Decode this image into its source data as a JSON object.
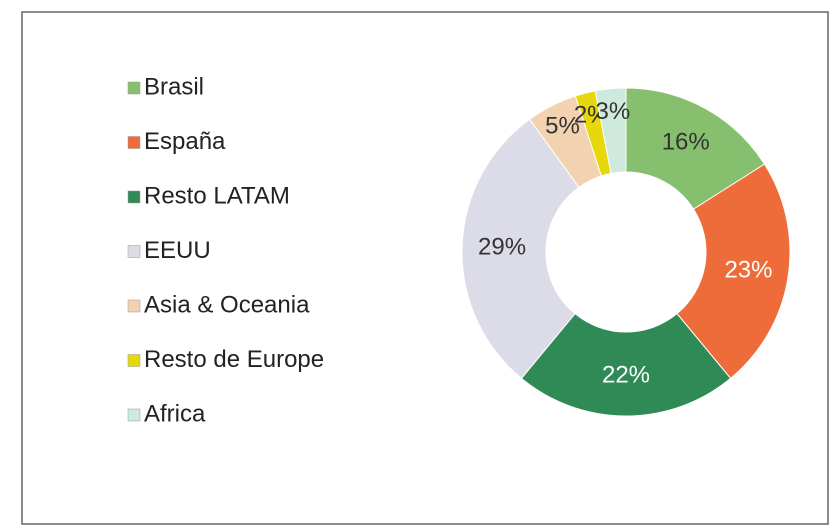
{
  "chart_data": {
    "type": "donut",
    "categories": [
      "Brasil",
      "España",
      "Resto LATAM",
      "EEUU",
      "Asia & Oceania",
      "Resto de Europe",
      "Africa"
    ],
    "values": [
      16,
      23,
      22,
      29,
      5,
      2,
      3
    ],
    "value_labels": [
      "16%",
      "23%",
      "22%",
      "29%",
      "5%",
      "2%",
      "3%"
    ],
    "colors": [
      "#86c06e",
      "#ee6c3a",
      "#2f8a55",
      "#dcdce8",
      "#f3d2b2",
      "#e6d80a",
      "#cfe9dd"
    ],
    "legend": "left"
  }
}
